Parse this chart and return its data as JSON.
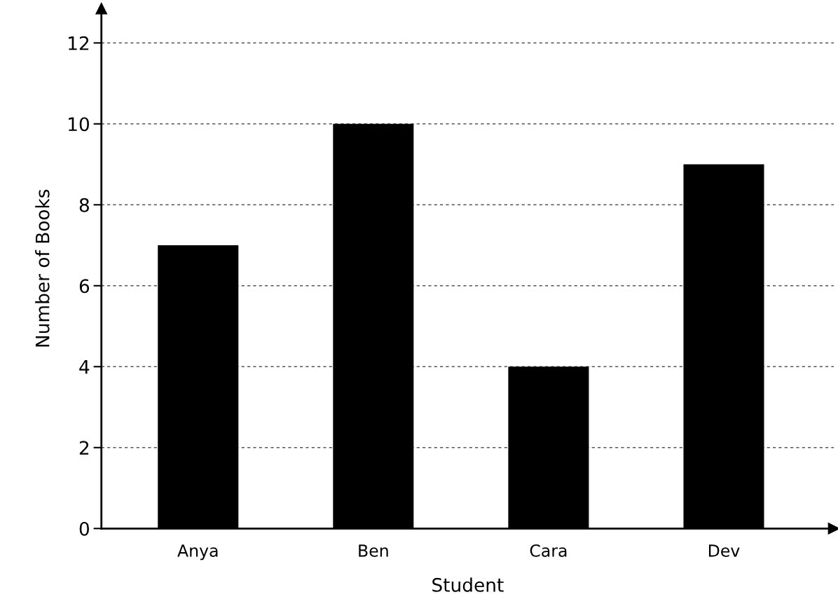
{
  "chart_data": {
    "type": "bar",
    "xlabel": "Student",
    "ylabel": "Number of Books",
    "categories": [
      "Anya",
      "Ben",
      "Cara",
      "Dev"
    ],
    "values": [
      7,
      10,
      4,
      9
    ],
    "color": "#000000",
    "ylim": [
      0,
      12.85
    ],
    "yticks": [
      0,
      2,
      4,
      6,
      8,
      10,
      12
    ],
    "grid": "y"
  }
}
